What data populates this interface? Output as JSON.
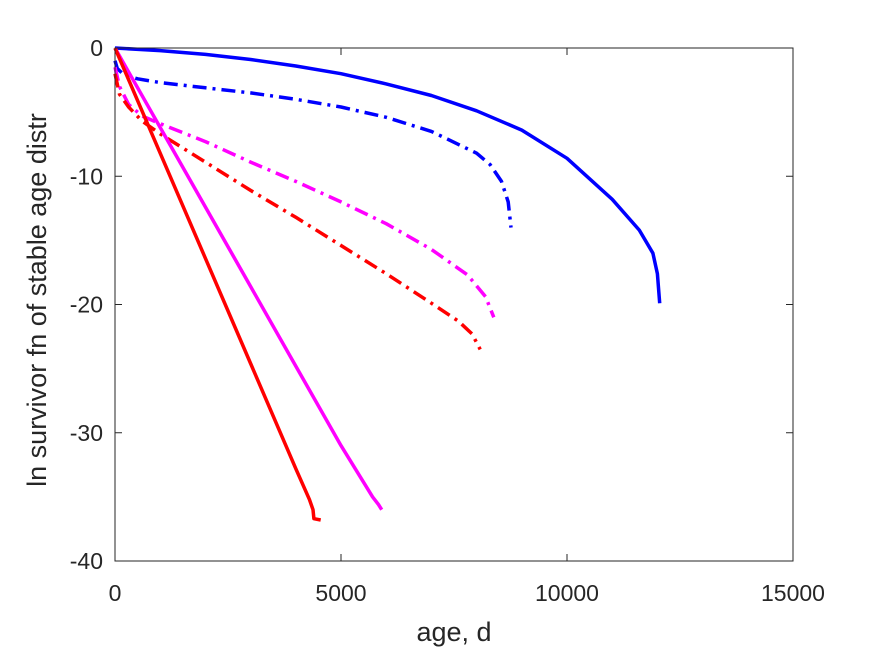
{
  "chart_data": {
    "type": "line",
    "title": "",
    "xlabel": "age, d",
    "ylabel": "ln survivor fn of stable age distr",
    "xlim": [
      0,
      15000
    ],
    "ylim": [
      -40,
      0
    ],
    "xticks": [
      0,
      5000,
      10000,
      15000
    ],
    "yticks": [
      -40,
      -30,
      -20,
      -10,
      0
    ],
    "xtick_labels": [
      "0",
      "5000",
      "10000",
      "15000"
    ],
    "ytick_labels": [
      "-40",
      "-30",
      "-20",
      "-10",
      "0"
    ],
    "grid": false,
    "legend": "none",
    "series": [
      {
        "color": "#0000ff",
        "style": "solid",
        "x": [
          0,
          1000,
          2000,
          3000,
          4000,
          5000,
          6000,
          7000,
          8000,
          9000,
          10000,
          11000,
          11600,
          11900,
          12000,
          12050
        ],
        "y": [
          0,
          -0.2,
          -0.5,
          -0.9,
          -1.4,
          -2.0,
          -2.8,
          -3.7,
          -4.9,
          -6.4,
          -8.6,
          -11.8,
          -14.2,
          -16.0,
          -17.6,
          -19.9
        ]
      },
      {
        "color": "#0000ff",
        "style": "dashdot",
        "x": [
          0,
          50,
          200,
          500,
          1000,
          2000,
          3000,
          4000,
          5000,
          6000,
          7000,
          8000,
          8300,
          8550,
          8700,
          8760
        ],
        "y": [
          -1.0,
          -1.6,
          -2.1,
          -2.4,
          -2.7,
          -3.1,
          -3.5,
          -4.0,
          -4.6,
          -5.4,
          -6.5,
          -8.2,
          -9.1,
          -10.4,
          -12.0,
          -14.0
        ]
      },
      {
        "color": "#ff00ff",
        "style": "dashdot",
        "x": [
          0,
          100,
          300,
          600,
          1000,
          2000,
          3000,
          4000,
          5000,
          6000,
          7000,
          7800,
          8200,
          8380
        ],
        "y": [
          -1.5,
          -3.0,
          -4.4,
          -5.3,
          -5.9,
          -7.3,
          -8.9,
          -10.4,
          -12.0,
          -13.7,
          -15.7,
          -17.7,
          -19.4,
          -21.0
        ]
      },
      {
        "color": "#ff0000",
        "style": "dashdot",
        "x": [
          0,
          100,
          300,
          600,
          1000,
          2000,
          3000,
          4000,
          5000,
          6000,
          7000,
          7600,
          7900,
          8080
        ],
        "y": [
          -2.0,
          -3.6,
          -4.6,
          -5.7,
          -6.7,
          -8.9,
          -11.1,
          -13.2,
          -15.4,
          -17.6,
          -19.9,
          -21.3,
          -22.3,
          -23.5
        ]
      },
      {
        "color": "#ff00ff",
        "style": "solid",
        "x": [
          0,
          1000,
          2000,
          3000,
          4000,
          5000,
          5700,
          5830,
          5900
        ],
        "y": [
          0,
          -6.2,
          -12.4,
          -18.6,
          -24.8,
          -31.0,
          -35.0,
          -35.6,
          -36.0
        ]
      },
      {
        "color": "#ff0000",
        "style": "solid",
        "x": [
          0,
          1000,
          2000,
          3000,
          4000,
          4300,
          4380,
          4400,
          4550
        ],
        "y": [
          0,
          -8.2,
          -16.4,
          -24.6,
          -32.8,
          -35.2,
          -36.0,
          -36.7,
          -36.8
        ]
      }
    ]
  }
}
